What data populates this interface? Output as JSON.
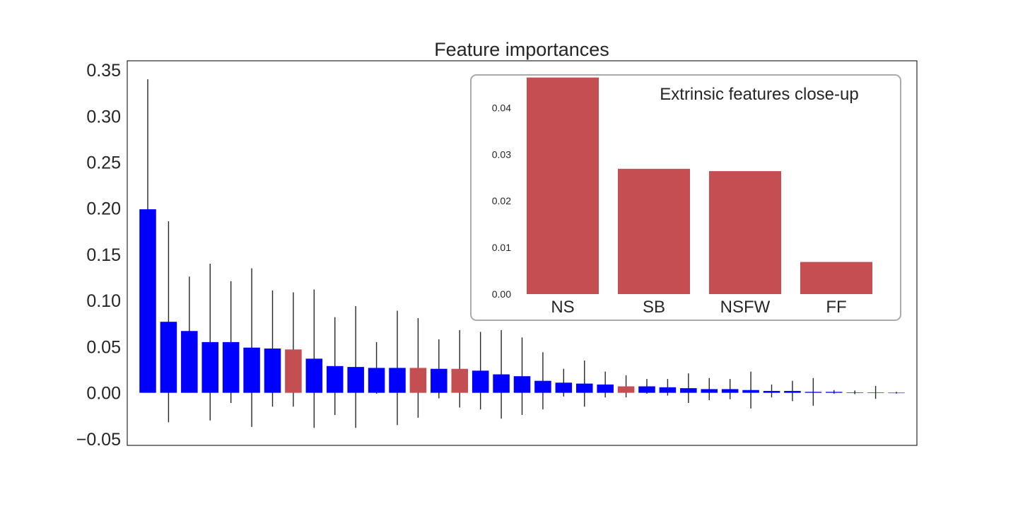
{
  "chart_data": [
    {
      "type": "bar",
      "title": "Feature importances",
      "xlabel": "",
      "ylabel": "",
      "ylim": [
        -0.057,
        0.36
      ],
      "yticks": [
        "0.35",
        "0.30",
        "0.25",
        "0.20",
        "0.15",
        "0.10",
        "0.05",
        "0.00",
        "−0.05"
      ],
      "ytick_values": [
        0.35,
        0.3,
        0.25,
        0.2,
        0.15,
        0.1,
        0.05,
        0.0,
        -0.05
      ],
      "grid": false,
      "legend": "none",
      "values": [
        0.199,
        0.077,
        0.067,
        0.055,
        0.055,
        0.049,
        0.048,
        0.047,
        0.037,
        0.029,
        0.028,
        0.027,
        0.027,
        0.027,
        0.026,
        0.026,
        0.024,
        0.02,
        0.018,
        0.013,
        0.011,
        0.01,
        0.009,
        0.007,
        0.007,
        0.006,
        0.005,
        0.004,
        0.004,
        0.003,
        0.002,
        0.002,
        0.001,
        0.001,
        0.0005,
        0.0004,
        0.0001
      ],
      "errors": [
        0.141,
        0.109,
        0.059,
        0.085,
        0.066,
        0.086,
        0.063,
        0.062,
        0.075,
        0.053,
        0.066,
        0.028,
        0.062,
        0.054,
        0.032,
        0.042,
        0.042,
        0.048,
        0.042,
        0.031,
        0.015,
        0.025,
        0.014,
        0.012,
        0.008,
        0.009,
        0.016,
        0.012,
        0.011,
        0.02,
        0.007,
        0.011,
        0.015,
        0.002,
        0.002,
        0.007,
        0.001
      ],
      "extrinsic": [
        false,
        false,
        false,
        false,
        false,
        false,
        false,
        true,
        false,
        false,
        false,
        false,
        false,
        true,
        false,
        true,
        false,
        false,
        false,
        false,
        false,
        false,
        false,
        true,
        false,
        false,
        false,
        false,
        false,
        false,
        false,
        false,
        false,
        false,
        false,
        false,
        false
      ]
    },
    {
      "type": "bar",
      "title": "Extrinsic features close-up",
      "categories": [
        "NS",
        "SB",
        "NSFW",
        "FF"
      ],
      "values": [
        0.0465,
        0.0269,
        0.0264,
        0.0069
      ],
      "ylim": [
        0.0,
        0.05
      ],
      "yticks": [
        "0.00",
        "0.01",
        "0.02",
        "0.03",
        "0.04"
      ],
      "ytick_values": [
        0.0,
        0.01,
        0.02,
        0.03,
        0.04
      ],
      "grid": false,
      "legend": "none"
    }
  ],
  "colors": {
    "intrinsic_bar": "#0000ff",
    "extrinsic_bar": "#c44e52",
    "error_bar": "#262626",
    "inset_border": "#aaaaaa"
  }
}
